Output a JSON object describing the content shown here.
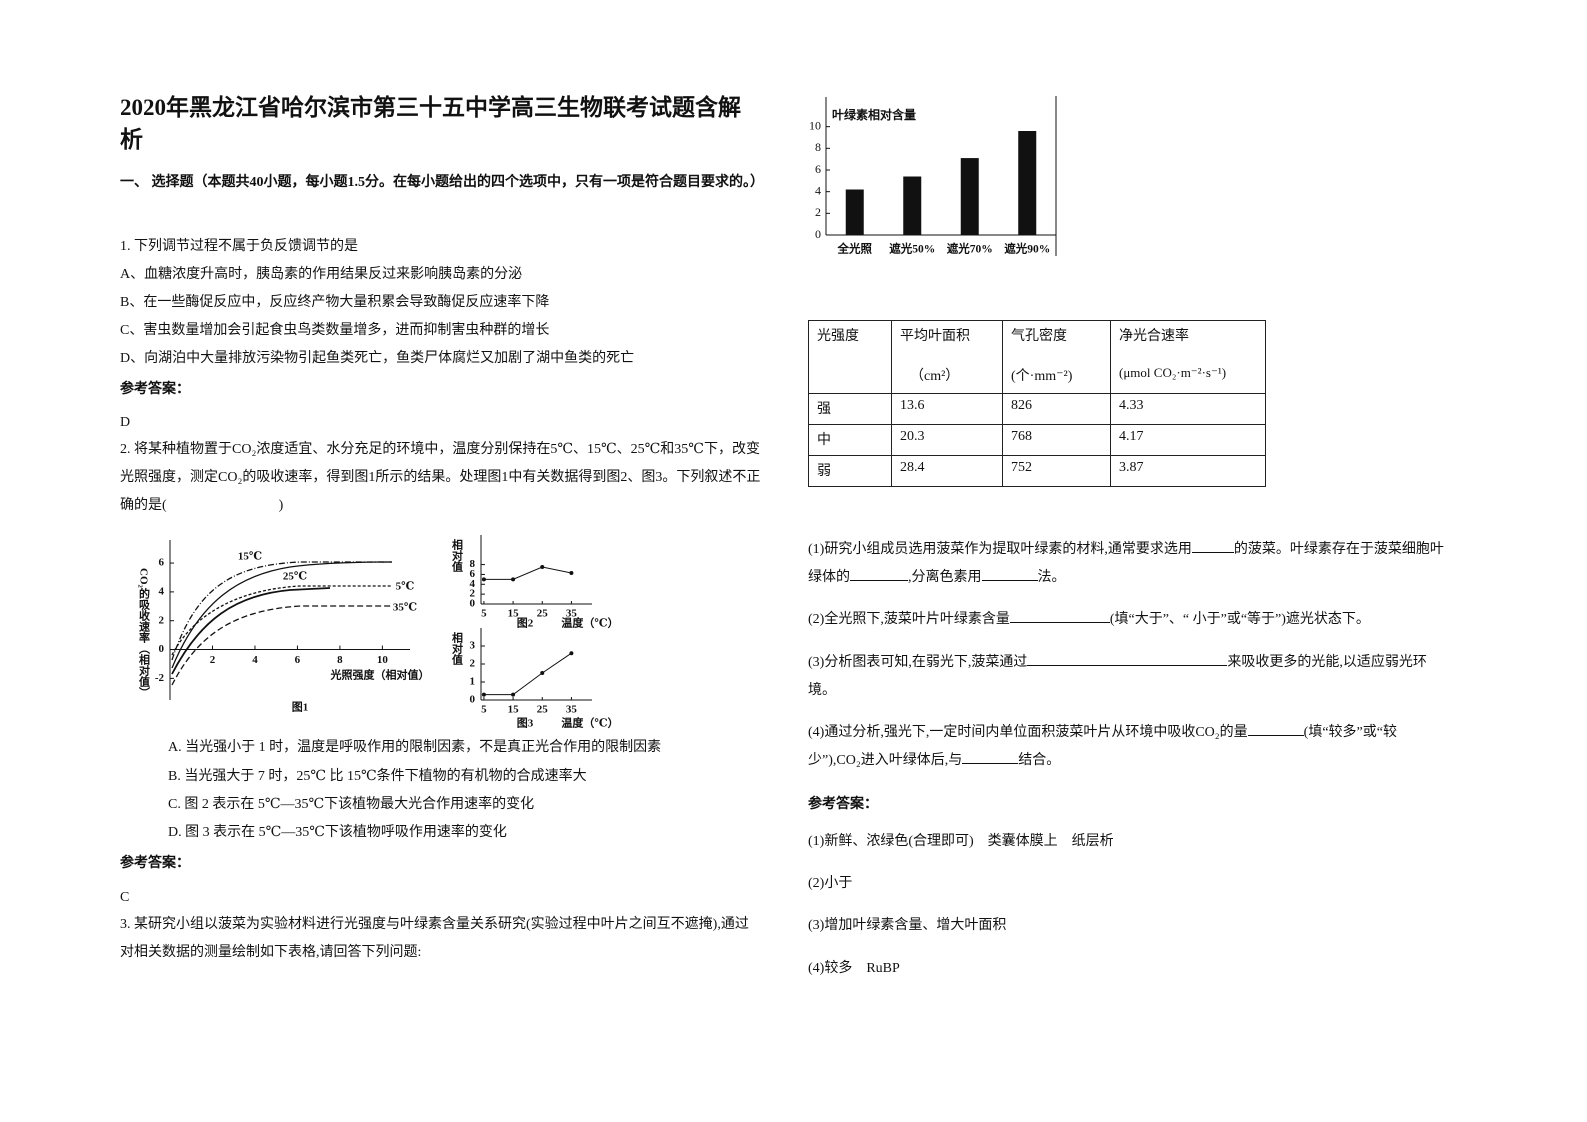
{
  "header": {
    "title": "2020年黑龙江省哈尔滨市第三十五中学高三生物联考试题含解析"
  },
  "section": "一、 选择题（本题共40小题，每小题1.5分。在每小题给出的四个选项中，只有一项是符合题目要求的。）",
  "questions": [
    {
      "stem": "1. 下列调节过程不属于负反馈调节的是",
      "options": [
        "A、血糖浓度升高时，胰岛素的作用结果反过来影响胰岛素的分泌",
        "B、在一些酶促反应中，反应终产物大量积累会导致酶促反应速率下降",
        "C、害虫数量增加会引起食虫鸟类数量增多，进而抑制害虫种群的增长",
        "D、向湖泊中大量排放污染物引起鱼类死亡，鱼类尸体腐烂又加剧了湖中鱼类的死亡"
      ],
      "answer_label": "参考答案：",
      "answer": "D"
    },
    {
      "stem": "2. 将某种植物置于CO₂浓度适宜、水分充足的环境中，温度分别保持在5℃、15℃、25℃和35℃下，改变光照强度，测定CO₂的吸收速率，得到图1所示的结果。处理图1中有关数据得到图2、图3。下列叙述不正确的是(　　　　　　　　)",
      "figures": {
        "fig1": {
          "caption": "图1",
          "y_label": "CO₂的吸收速率（相对值）",
          "x_label": "光照强度（相对值）",
          "xlim": [
            0,
            11.3
          ],
          "ylim": [
            -3.5,
            7.6
          ],
          "xticks": [
            2,
            4,
            6,
            8,
            10
          ],
          "yticks": [
            -2,
            0,
            2,
            4,
            6
          ],
          "curve_labels": [
            "15℃",
            "25℃",
            "5℃",
            "35℃"
          ]
        },
        "fig2": {
          "type": "line",
          "caption": "图2",
          "y_label": "相对值",
          "x_label": "温度（℃）",
          "x": [
            5,
            15,
            25,
            35
          ],
          "values": [
            5,
            5,
            7.5,
            6.3
          ],
          "xlim": [
            4,
            40
          ],
          "ylim": [
            0,
            14
          ],
          "xticks": [
            5,
            15,
            25,
            35
          ],
          "yticks": [
            0,
            2,
            4,
            6,
            8
          ]
        },
        "fig3": {
          "type": "line",
          "caption": "图3",
          "y_label": "相对值",
          "x_label": "温度（℃）",
          "x": [
            5,
            15,
            25,
            35
          ],
          "values": [
            0.3,
            0.3,
            1.5,
            2.6
          ],
          "xlim": [
            4,
            40
          ],
          "ylim": [
            0,
            4
          ],
          "xticks": [
            5,
            15,
            25,
            35
          ],
          "yticks": [
            0,
            1,
            2,
            3
          ]
        }
      },
      "options": [
        "A.  当光强小于 1 时，温度是呼吸作用的限制因素，不是真正光合作用的限制因素",
        "B.  当光强大于 7 时，25℃ 比 15℃条件下植物的有机物的合成速率大",
        "C.  图 2 表示在 5℃—35℃下该植物最大光合作用速率的变化",
        "D.  图 3 表示在 5℃—35℃下该植物呼吸作用速率的变化"
      ],
      "answer_label": "参考答案：",
      "answer": "C"
    },
    {
      "stem": "3. 某研究小组以菠菜为实验材料进行光强度与叶绿素含量关系研究(实验过程中叶片之间互不遮掩),通过对相关数据的测量绘制如下表格,请回答下列问题:",
      "chart_data": {
        "type": "bar",
        "y_label": "叶绿素相对含量",
        "categories": [
          "全光照",
          "遮光50%",
          "遮光70%",
          "遮光90%"
        ],
        "values": [
          4.2,
          5.4,
          7.1,
          9.6
        ],
        "ylim": [
          0,
          12
        ],
        "yticks": [
          0,
          2,
          4,
          6,
          8,
          10
        ]
      },
      "table": {
        "header": [
          [
            "光强度",
            ""
          ],
          [
            "平均叶面积",
            "（cm²）"
          ],
          [
            "气孔密度",
            "(个·mm⁻²)"
          ],
          [
            "净光合速率",
            "(μmol CO₂·m⁻²·s⁻¹)"
          ]
        ],
        "rows": [
          [
            "强",
            "13.6",
            "826",
            "4.33"
          ],
          [
            "中",
            "20.3",
            "768",
            "4.17"
          ],
          [
            "弱",
            "28.4",
            "752",
            "3.87"
          ]
        ]
      },
      "sub_questions": [
        [
          "(1)研究小组成员选用菠菜作为提取叶绿素的材料,通常要求选用",
          "的菠菜。叶绿素存在于菠菜细胞叶绿体的",
          ",分离色素用",
          "法。"
        ],
        [
          "(2)全光照下,菠菜叶片叶绿素含量",
          "(填“大于”、“ 小于”或“等于”)遮光状态下。"
        ],
        [
          "(3)分析图表可知,在弱光下,菠菜通过",
          "来吸收更多的光能,以适应弱光环境。"
        ],
        [
          "(4)通过分析,强光下,一定时间内单位面积菠菜叶片从环境中吸收CO₂的量",
          "(填“较多”或“较少”),CO₂进入叶绿体后,与",
          "结合。"
        ]
      ],
      "answer_label": "参考答案：",
      "answers": [
        "(1)新鲜、浓绿色(合理即可)　类囊体膜上　纸层析",
        "(2)小于",
        "(3)增加叶绿素含量、增大叶面积",
        "(4)较多　RuBP"
      ]
    }
  ]
}
